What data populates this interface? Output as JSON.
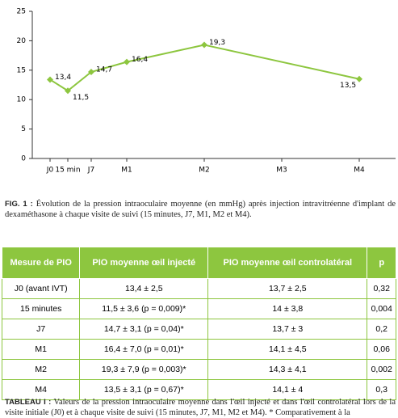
{
  "chart_data": {
    "type": "line",
    "categories": [
      "J0",
      "15 min",
      "J7",
      "M1",
      "M2",
      "M3",
      "M4"
    ],
    "series": [
      {
        "name": "PIO",
        "color": "#8dc63f",
        "values": [
          13.4,
          11.5,
          14.7,
          16.4,
          19.3,
          null,
          13.5
        ],
        "value_labels": [
          "13,4",
          "11,5",
          "14,7",
          "16,4",
          "19,3",
          null,
          "13,5"
        ]
      }
    ],
    "ylim": [
      0,
      25
    ],
    "yticks": [
      0,
      5,
      10,
      15,
      20,
      25
    ]
  },
  "figure_caption": {
    "label": "FIG. 1 :",
    "text": "Évolution de la pression intraoculaire moyenne (en mmHg) après injection intravitréenne d'implant de dexaméthasone à chaque visite de suivi (15 minutes, J7, M1, M2 et M4)."
  },
  "table": {
    "header": [
      "Mesure de PIO",
      "PIO moyenne œil injecté",
      "PIO moyenne œil controlatéral",
      "p"
    ],
    "rows": [
      [
        "J0 (avant IVT)",
        "13,4 ± 2,5",
        "13,7 ± 2,5",
        "0,32"
      ],
      [
        "15 minutes",
        "11,5 ± 3,6 (p = 0,009)*",
        "14 ± 3,8",
        "0,004"
      ],
      [
        "J7",
        "14,7 ± 3,1 (p = 0,04)*",
        "13,7 ± 3",
        "0,2"
      ],
      [
        "M1",
        "16,4 ± 7,0 (p = 0,01)*",
        "14,1 ± 4,5",
        "0,06"
      ],
      [
        "M2",
        "19,3 ± 7,9 (p = 0,003)*",
        "14,3 ± 4,1",
        "0,002"
      ],
      [
        "M4",
        "13,5 ± 3,1 (p = 0,67)*",
        "14,1 ± 4",
        "0,3"
      ]
    ]
  },
  "table_caption": {
    "label": "TABLEAU I :",
    "text": "Valeurs de la pression intraoculaire moyenne dans l'œil injecté et dans l'œil controlatéral lors de la visite initiale (J0) et à chaque visite de suivi (15 minutes, J7, M1, M2 et M4). * Comparativement à la"
  }
}
